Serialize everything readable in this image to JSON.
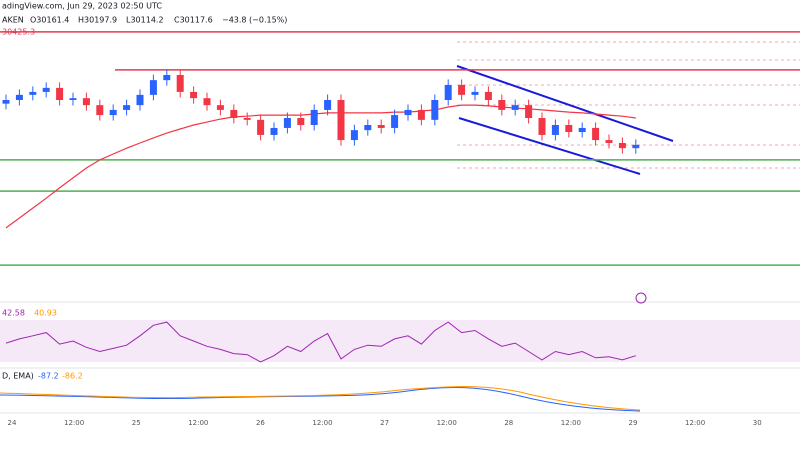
{
  "chart_data": {
    "type": "candlestick",
    "source": "adingView.com, Jun 29, 2023 02:50 UTC",
    "symbol": "AKEN",
    "ohlc_text": [
      "O30161.4",
      "H30197.9",
      "L30114.2",
      "C30117.6",
      "−43.8 (−0.15%)"
    ],
    "rsi_label": [
      "42.58",
      "40.93"
    ],
    "macd_label": [
      "D, EMA)",
      "-87.2",
      "-86.2"
    ],
    "x_labels": [
      "24",
      "12:00",
      "25",
      "12:00",
      "26",
      "12:00",
      "27",
      "12:00",
      "28",
      "12:00",
      "29",
      "12:00",
      "30"
    ],
    "up_color": "#2962ff",
    "down_color": "#f23645",
    "ylim": [
      29696,
      30512
    ],
    "open": [
      30230,
      30240,
      30254,
      30262,
      30273,
      30240,
      30245,
      30226,
      30199,
      30213,
      30226,
      30254,
      30294,
      30308,
      30262,
      30245,
      30226,
      30213,
      30191,
      30186,
      30145,
      30164,
      30191,
      30172,
      30213,
      30240,
      30131,
      30158,
      30172,
      30164,
      30199,
      30213,
      30186,
      30240,
      30281,
      30254,
      30262,
      30240,
      30213,
      30226,
      30191,
      30145,
      30172,
      30153,
      30164,
      30131,
      30123,
      30109
    ],
    "high": [
      30255,
      30269,
      30277,
      30288,
      30288,
      30260,
      30260,
      30241,
      30228,
      30241,
      30269,
      30309,
      30323,
      30323,
      30277,
      30260,
      30241,
      30228,
      30206,
      30201,
      30179,
      30206,
      30206,
      30228,
      30255,
      30255,
      30173,
      30187,
      30187,
      30214,
      30228,
      30228,
      30255,
      30296,
      30296,
      30277,
      30277,
      30255,
      30241,
      30241,
      30206,
      30187,
      30187,
      30179,
      30179,
      30146,
      30138,
      30133
    ],
    "low": [
      30215,
      30225,
      30239,
      30247,
      30225,
      30225,
      30211,
      30184,
      30184,
      30198,
      30211,
      30239,
      30279,
      30247,
      30230,
      30211,
      30198,
      30176,
      30171,
      30130,
      30130,
      30149,
      30157,
      30157,
      30198,
      30116,
      30116,
      30143,
      30149,
      30149,
      30184,
      30171,
      30171,
      30225,
      30239,
      30239,
      30225,
      30198,
      30198,
      30176,
      30130,
      30130,
      30138,
      30138,
      30116,
      30108,
      30094,
      30094
    ],
    "close": [
      30240,
      30254,
      30262,
      30273,
      30240,
      30245,
      30226,
      30199,
      30213,
      30226,
      30254,
      30294,
      30308,
      30262,
      30245,
      30226,
      30213,
      30191,
      30186,
      30145,
      30164,
      30191,
      30172,
      30213,
      30240,
      30131,
      30158,
      30172,
      30164,
      30199,
      30213,
      30186,
      30240,
      30281,
      30254,
      30262,
      30240,
      30213,
      30226,
      30191,
      30145,
      30172,
      30153,
      30164,
      30131,
      30123,
      30109,
      30118
    ],
    "ma": {
      "color": "#f23645",
      "values": [
        29892,
        29919,
        29946,
        29973,
        30001,
        30028,
        30055,
        30077,
        30093,
        30109,
        30123,
        30137,
        30150,
        30161,
        30172,
        30180,
        30188,
        30194,
        30196,
        30199,
        30199,
        30199,
        30199,
        30202,
        30205,
        30205,
        30205,
        30205,
        30205,
        30207,
        30207,
        30210,
        30213,
        30221,
        30226,
        30226,
        30224,
        30221,
        30218,
        30216,
        30213,
        30210,
        30207,
        30205,
        30202,
        30199,
        30196,
        30191
      ]
    },
    "levels": [
      {
        "value": 30425.3,
        "color": "#e53950"
      },
      {
        "value": 30322,
        "color": "#e53950"
      },
      {
        "value": 30077,
        "color": "#4caf50"
      },
      {
        "value": 29992,
        "color": "#4caf50"
      },
      {
        "value": 29791,
        "color": "#4caf50"
      }
    ],
    "rsi": {
      "color": "#9c27b0",
      "ylim": [
        30,
        70
      ],
      "values": [
        48,
        52,
        55,
        58,
        47,
        50,
        44,
        40,
        43,
        46,
        55,
        65,
        68,
        55,
        50,
        45,
        42,
        38,
        37,
        30,
        36,
        45,
        40,
        50,
        57,
        33,
        42,
        46,
        45,
        52,
        55,
        47,
        60,
        68,
        58,
        60,
        52,
        45,
        48,
        40,
        32,
        40,
        37,
        40,
        34,
        35,
        32,
        36
      ]
    }
  }
}
